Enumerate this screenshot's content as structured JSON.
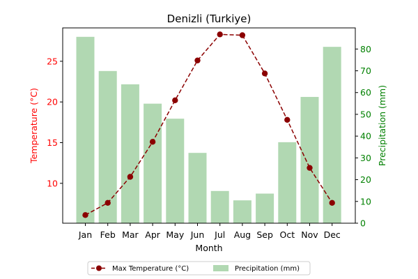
{
  "chart_data": {
    "type": "bar+line",
    "title": "Denizli (Turkiye)",
    "xlabel": "Month",
    "categories": [
      "Jan",
      "Feb",
      "Mar",
      "Apr",
      "May",
      "Jun",
      "Jul",
      "Aug",
      "Sep",
      "Oct",
      "Nov",
      "Dec"
    ],
    "left_axis": {
      "label": "Temperature (°C)",
      "color": "#ff0000",
      "ylim": [
        5.1,
        29.1
      ],
      "ticks": [
        10,
        15,
        20,
        25
      ]
    },
    "right_axis": {
      "label": "Precipitation (mm)",
      "color": "#008000",
      "ylim": [
        0,
        89.7
      ],
      "ticks": [
        0,
        10,
        20,
        30,
        40,
        50,
        60,
        70,
        80
      ]
    },
    "series": [
      {
        "name": "Max Temperature (°C)",
        "kind": "line",
        "axis": "left",
        "color": "#8b0000",
        "marker": "circle",
        "linestyle": "dashed",
        "values": [
          6.1,
          7.6,
          10.8,
          15.1,
          20.2,
          25.1,
          28.3,
          28.2,
          23.5,
          17.8,
          11.9,
          7.6
        ]
      },
      {
        "name": "Precipitation (mm)",
        "kind": "bar",
        "axis": "right",
        "color": "#b1d8b2",
        "values": [
          85.6,
          69.9,
          63.8,
          54.9,
          48.0,
          32.3,
          14.8,
          10.5,
          13.6,
          37.2,
          58.0,
          81.0
        ]
      }
    ],
    "legend": {
      "placement": "bottom-center",
      "columns": 2
    },
    "grid": false
  }
}
